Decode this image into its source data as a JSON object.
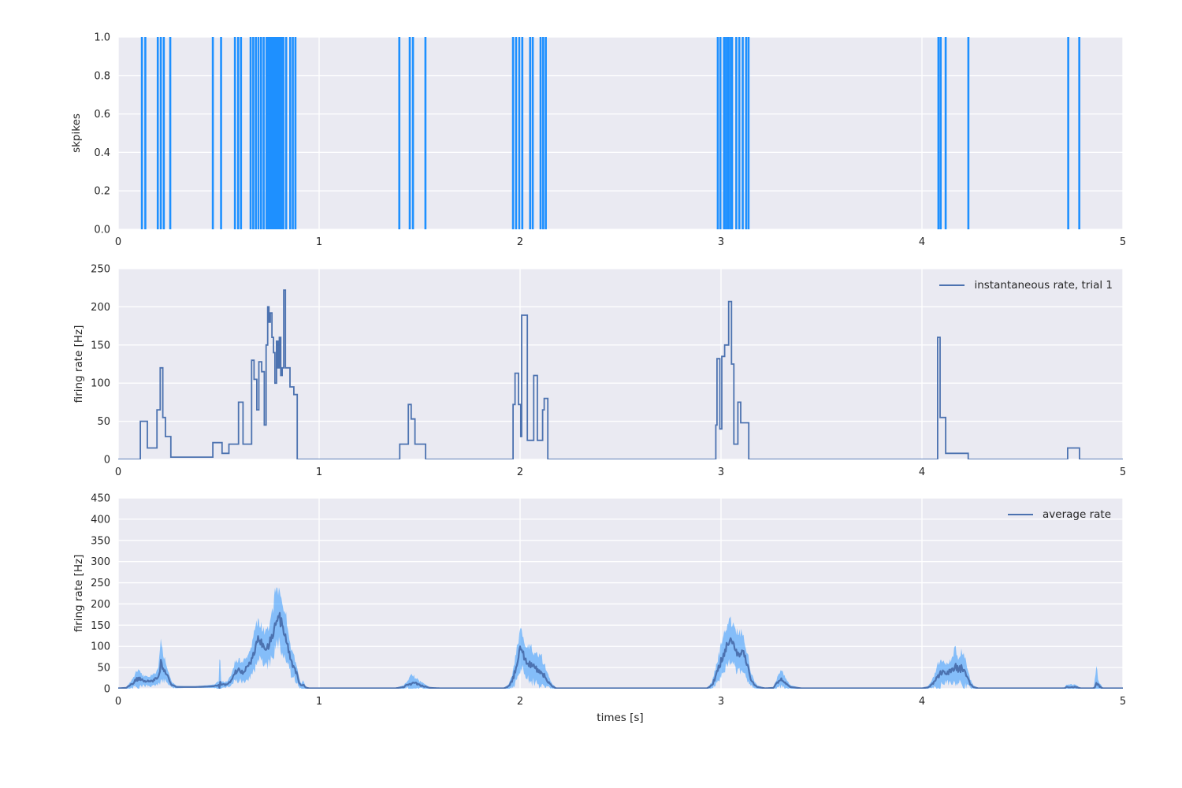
{
  "figure": {
    "background": "#ffffff",
    "axes_background": "#eaeaf2",
    "grid_color": "#ffffff",
    "text_color": "#262626"
  },
  "chart_data": [
    {
      "type": "scatter",
      "subtype": "spike-raster-eventplot",
      "ylabel": "skpikes",
      "xlim": [
        0,
        5
      ],
      "ylim": [
        0.0,
        1.0
      ],
      "xticks": [
        "0",
        "1",
        "2",
        "3",
        "4",
        "5"
      ],
      "yticks": [
        "0.0",
        "0.2",
        "0.4",
        "0.6",
        "0.8",
        "1.0"
      ],
      "grid": true,
      "spike_color": "#1e90ff",
      "spike_times": [
        0.118,
        0.135,
        0.197,
        0.212,
        0.227,
        0.259,
        0.471,
        0.512,
        0.581,
        0.597,
        0.611,
        0.659,
        0.672,
        0.685,
        0.698,
        0.711,
        0.724,
        0.738,
        0.745,
        0.752,
        0.76,
        0.768,
        0.775,
        0.783,
        0.79,
        0.798,
        0.806,
        0.814,
        0.822,
        0.836,
        0.856,
        0.869,
        0.882,
        1.399,
        1.451,
        1.467,
        1.529,
        1.965,
        1.98,
        1.996,
        2.011,
        2.05,
        2.063,
        2.102,
        2.115,
        2.128,
        2.984,
        2.997,
        3.015,
        3.025,
        3.035,
        3.045,
        3.055,
        3.076,
        3.091,
        3.108,
        3.125,
        3.137,
        4.082,
        4.093,
        4.118,
        4.231,
        4.728,
        4.783
      ]
    },
    {
      "type": "line",
      "subtype": "step",
      "ylabel": "firing rate [Hz]",
      "legend_label": "instantaneous rate, trial 1",
      "legend_position": "upper right",
      "xlim": [
        0,
        5
      ],
      "ylim": [
        0,
        250
      ],
      "xticks": [
        "0",
        "1",
        "2",
        "3",
        "4",
        "5"
      ],
      "yticks": [
        "0",
        "50",
        "100",
        "150",
        "200",
        "250"
      ],
      "grid": true,
      "line_color": "#4c72b0",
      "steps": [
        [
          0,
          0
        ],
        [
          0.11,
          50
        ],
        [
          0.145,
          15
        ],
        [
          0.193,
          65
        ],
        [
          0.209,
          120
        ],
        [
          0.222,
          55
        ],
        [
          0.235,
          30
        ],
        [
          0.262,
          3
        ],
        [
          0.471,
          22
        ],
        [
          0.517,
          8
        ],
        [
          0.551,
          20
        ],
        [
          0.599,
          75
        ],
        [
          0.621,
          20
        ],
        [
          0.664,
          130
        ],
        [
          0.676,
          105
        ],
        [
          0.69,
          65
        ],
        [
          0.7,
          128
        ],
        [
          0.714,
          115
        ],
        [
          0.727,
          45
        ],
        [
          0.736,
          150
        ],
        [
          0.744,
          200
        ],
        [
          0.75,
          180
        ],
        [
          0.757,
          192
        ],
        [
          0.765,
          160
        ],
        [
          0.773,
          140
        ],
        [
          0.78,
          100
        ],
        [
          0.788,
          155
        ],
        [
          0.795,
          120
        ],
        [
          0.802,
          160
        ],
        [
          0.809,
          110
        ],
        [
          0.816,
          120
        ],
        [
          0.824,
          222
        ],
        [
          0.832,
          120
        ],
        [
          0.855,
          95
        ],
        [
          0.874,
          85
        ],
        [
          0.891,
          0
        ],
        [
          1.401,
          20
        ],
        [
          1.444,
          72
        ],
        [
          1.458,
          53
        ],
        [
          1.477,
          20
        ],
        [
          1.53,
          0
        ],
        [
          1.965,
          72
        ],
        [
          1.975,
          113
        ],
        [
          1.992,
          72
        ],
        [
          2.003,
          30
        ],
        [
          2.008,
          189
        ],
        [
          2.036,
          25
        ],
        [
          2.068,
          110
        ],
        [
          2.086,
          25
        ],
        [
          2.112,
          65
        ],
        [
          2.12,
          80
        ],
        [
          2.138,
          0
        ],
        [
          2.974,
          45
        ],
        [
          2.98,
          132
        ],
        [
          2.994,
          40
        ],
        [
          3.004,
          135
        ],
        [
          3.018,
          150
        ],
        [
          3.038,
          207
        ],
        [
          3.052,
          125
        ],
        [
          3.064,
          20
        ],
        [
          3.084,
          75
        ],
        [
          3.098,
          48
        ],
        [
          3.138,
          0
        ],
        [
          4.078,
          160
        ],
        [
          4.09,
          55
        ],
        [
          4.118,
          8
        ],
        [
          4.23,
          0
        ],
        [
          4.725,
          15
        ],
        [
          4.784,
          0
        ]
      ]
    },
    {
      "type": "area",
      "subtype": "mean-with-uncertainty-band",
      "ylabel": "firing rate [Hz]",
      "xlabel": "times [s]",
      "legend_label": "average rate",
      "legend_position": "upper right",
      "xlim": [
        0,
        5
      ],
      "ylim": [
        0,
        450
      ],
      "xticks": [
        "0",
        "1",
        "2",
        "3",
        "4",
        "5"
      ],
      "yticks": [
        "0",
        "50",
        "100",
        "150",
        "200",
        "250",
        "300",
        "350",
        "400",
        "450"
      ],
      "grid": true,
      "line_color": "#4c72b0",
      "band_color": "rgba(30,144,255,0.5)",
      "keypoints_t_mean_half": [
        [
          0.0,
          1,
          1
        ],
        [
          0.04,
          2,
          2
        ],
        [
          0.07,
          12,
          10
        ],
        [
          0.09,
          22,
          18
        ],
        [
          0.1,
          25,
          25
        ],
        [
          0.12,
          20,
          12
        ],
        [
          0.15,
          17,
          10
        ],
        [
          0.18,
          20,
          14
        ],
        [
          0.2,
          30,
          18
        ],
        [
          0.213,
          62,
          50
        ],
        [
          0.225,
          50,
          28
        ],
        [
          0.245,
          30,
          18
        ],
        [
          0.265,
          10,
          7
        ],
        [
          0.29,
          4,
          3
        ],
        [
          0.33,
          4,
          2
        ],
        [
          0.38,
          4,
          2
        ],
        [
          0.44,
          5,
          3
        ],
        [
          0.48,
          6,
          4
        ],
        [
          0.5,
          8,
          10
        ],
        [
          0.505,
          12,
          70
        ],
        [
          0.512,
          9,
          8
        ],
        [
          0.54,
          10,
          6
        ],
        [
          0.56,
          18,
          12
        ],
        [
          0.58,
          38,
          22
        ],
        [
          0.6,
          45,
          25
        ],
        [
          0.62,
          40,
          22
        ],
        [
          0.64,
          48,
          26
        ],
        [
          0.66,
          60,
          30
        ],
        [
          0.68,
          90,
          45
        ],
        [
          0.695,
          115,
          48
        ],
        [
          0.71,
          112,
          40
        ],
        [
          0.725,
          98,
          38
        ],
        [
          0.74,
          96,
          42
        ],
        [
          0.755,
          108,
          48
        ],
        [
          0.77,
          130,
          55
        ],
        [
          0.78,
          155,
          65
        ],
        [
          0.79,
          172,
          60
        ],
        [
          0.8,
          168,
          62
        ],
        [
          0.812,
          158,
          66
        ],
        [
          0.825,
          138,
          52
        ],
        [
          0.838,
          115,
          48
        ],
        [
          0.85,
          85,
          38
        ],
        [
          0.862,
          62,
          30
        ],
        [
          0.875,
          52,
          28
        ],
        [
          0.888,
          35,
          22
        ],
        [
          0.9,
          14,
          12
        ],
        [
          0.91,
          6,
          6
        ],
        [
          0.92,
          9,
          9
        ],
        [
          0.932,
          3,
          3
        ],
        [
          0.95,
          1,
          1
        ],
        [
          1.0,
          1,
          1
        ],
        [
          1.38,
          1,
          1
        ],
        [
          1.42,
          4,
          4
        ],
        [
          1.44,
          10,
          8
        ],
        [
          1.46,
          14,
          20
        ],
        [
          1.48,
          13,
          12
        ],
        [
          1.5,
          9,
          9
        ],
        [
          1.52,
          6,
          6
        ],
        [
          1.55,
          2,
          2
        ],
        [
          1.6,
          1,
          1
        ],
        [
          1.92,
          1,
          1
        ],
        [
          1.945,
          6,
          6
        ],
        [
          1.96,
          18,
          14
        ],
        [
          1.975,
          40,
          28
        ],
        [
          1.99,
          70,
          40
        ],
        [
          2.002,
          95,
          48
        ],
        [
          2.015,
          85,
          42
        ],
        [
          2.03,
          65,
          38
        ],
        [
          2.045,
          58,
          38
        ],
        [
          2.06,
          55,
          40
        ],
        [
          2.075,
          48,
          32
        ],
        [
          2.09,
          42,
          34
        ],
        [
          2.105,
          40,
          36
        ],
        [
          2.12,
          32,
          26
        ],
        [
          2.135,
          20,
          16
        ],
        [
          2.15,
          10,
          10
        ],
        [
          2.165,
          4,
          5
        ],
        [
          2.18,
          1,
          1
        ],
        [
          2.5,
          1,
          1
        ],
        [
          2.93,
          1,
          1
        ],
        [
          2.955,
          8,
          7
        ],
        [
          2.97,
          25,
          18
        ],
        [
          2.985,
          45,
          28
        ],
        [
          3.0,
          65,
          35
        ],
        [
          3.015,
          85,
          42
        ],
        [
          3.03,
          100,
          48
        ],
        [
          3.045,
          112,
          52
        ],
        [
          3.06,
          100,
          45
        ],
        [
          3.075,
          88,
          42
        ],
        [
          3.09,
          86,
          48
        ],
        [
          3.105,
          92,
          44
        ],
        [
          3.12,
          70,
          35
        ],
        [
          3.135,
          48,
          28
        ],
        [
          3.15,
          22,
          15
        ],
        [
          3.165,
          10,
          8
        ],
        [
          3.18,
          4,
          4
        ],
        [
          3.22,
          1,
          1
        ],
        [
          3.26,
          2,
          2
        ],
        [
          3.28,
          14,
          12
        ],
        [
          3.3,
          24,
          18
        ],
        [
          3.32,
          14,
          12
        ],
        [
          3.345,
          4,
          4
        ],
        [
          3.4,
          1,
          1
        ],
        [
          3.7,
          1,
          1
        ],
        [
          4.0,
          1,
          1
        ],
        [
          4.03,
          3,
          3
        ],
        [
          4.05,
          10,
          9
        ],
        [
          4.07,
          24,
          18
        ],
        [
          4.085,
          32,
          34
        ],
        [
          4.1,
          38,
          24
        ],
        [
          4.115,
          36,
          22
        ],
        [
          4.13,
          38,
          24
        ],
        [
          4.15,
          42,
          28
        ],
        [
          4.165,
          52,
          42
        ],
        [
          4.18,
          46,
          30
        ],
        [
          4.195,
          48,
          38
        ],
        [
          4.21,
          45,
          40
        ],
        [
          4.225,
          30,
          22
        ],
        [
          4.24,
          12,
          10
        ],
        [
          4.255,
          4,
          4
        ],
        [
          4.28,
          1,
          1
        ],
        [
          4.6,
          1,
          1
        ],
        [
          4.71,
          1,
          2
        ],
        [
          4.72,
          4,
          6
        ],
        [
          4.76,
          4,
          6
        ],
        [
          4.79,
          1,
          1
        ],
        [
          4.855,
          1,
          2
        ],
        [
          4.868,
          12,
          34
        ],
        [
          4.882,
          6,
          8
        ],
        [
          4.9,
          1,
          1
        ],
        [
          5.0,
          1,
          1
        ]
      ]
    }
  ]
}
